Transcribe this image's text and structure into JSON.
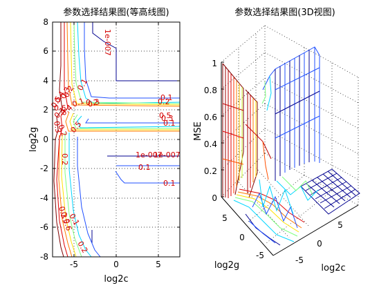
{
  "chart_data": [
    {
      "type": "contour",
      "title": "参数选择结果图(等高线图)",
      "xlabel": "log2c",
      "ylabel": "log2g",
      "xlim": [
        -8,
        8
      ],
      "ylim": [
        -8,
        8
      ],
      "xticks": [
        "-5",
        "0",
        "5"
      ],
      "yticks": [
        "8",
        "6",
        "4",
        "2",
        "0",
        "-2",
        "-4",
        "-6",
        "-8"
      ],
      "grid": true,
      "levels": [
        {
          "value": 1e-07,
          "color": "#00008f"
        },
        {
          "value": 0.1,
          "color": "#1f4fff"
        },
        {
          "value": 0.2,
          "color": "#00d6ff"
        },
        {
          "value": 0.3,
          "color": "#7fff7f"
        },
        {
          "value": 0.4,
          "color": "#ffe000"
        },
        {
          "value": 0.5,
          "color": "#ff7a00"
        },
        {
          "value": 0.6,
          "color": "#e00000"
        },
        {
          "value": 0.7,
          "color": "#800000"
        }
      ],
      "contour_labels": [
        "1e-007",
        "0.1",
        "0.2",
        "0.3",
        "0.4",
        "0.5",
        "0.6",
        "0.1",
        "0.2",
        "0.3",
        "0.1",
        "0.2",
        "0.3",
        "0.4",
        "0.5",
        "0.1",
        "0.2",
        "0.3",
        "0.5",
        "0.1",
        "1e-007",
        "1e-007",
        "0.1",
        "0.1",
        "0.2",
        "0.3",
        "0.5",
        "0.6",
        "0.1",
        "0.2"
      ]
    },
    {
      "type": "surface3d",
      "title": "参数选择结果图(3D视图)",
      "xlabel": "log2c",
      "ylabel": "log2g",
      "zlabel": "MSE",
      "zlim": [
        0,
        1
      ],
      "zticks": [
        "1",
        "0.8",
        "0.6",
        "0.4",
        "0.2",
        "0"
      ],
      "xticks": [
        "5",
        "0",
        "-5"
      ],
      "yticks": [
        "5",
        "0",
        "-5"
      ]
    }
  ]
}
